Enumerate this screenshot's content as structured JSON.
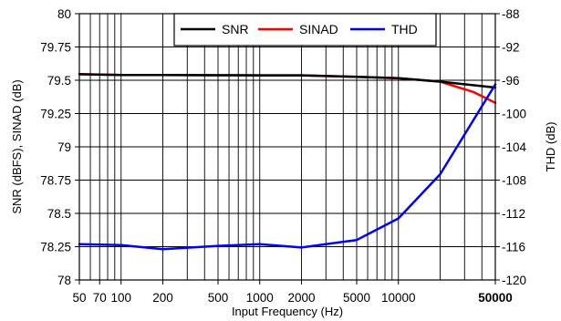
{
  "chart_data": {
    "type": "line",
    "xlabel": "Input Frequency (Hz)",
    "ylabel_left": "SNR (dBFS), SINAD (dB)",
    "ylabel_right": "THD (dB)",
    "x_scale": "log",
    "xlim": [
      50,
      50000
    ],
    "ylim_left": [
      78,
      80
    ],
    "ylim_right": [
      -120,
      -88
    ],
    "grid": true,
    "legend_position": "top-right",
    "x_tick_values": [
      50,
      70,
      100,
      200,
      500,
      1000,
      2000,
      5000,
      10000,
      50000
    ],
    "x_tick_labels": [
      "50",
      "70",
      "100",
      "200",
      "500",
      "1000",
      "2000",
      "5000",
      "10000",
      "50000"
    ],
    "y_left_tick_labels": [
      "80",
      "79.75",
      "79.5",
      "79.25",
      "79",
      "78.75",
      "78.5",
      "78.25",
      "78"
    ],
    "y_right_tick_labels": [
      "-88",
      "-92",
      "-96",
      "-100",
      "-104",
      "-108",
      "-112",
      "-116",
      "-120"
    ],
    "series": [
      {
        "name": "SNR",
        "axis": "left",
        "color": "#000000",
        "x": [
          50,
          100,
          200,
          500,
          1000,
          2000,
          5000,
          10000,
          20000,
          50000
        ],
        "y": [
          79.545,
          79.54,
          79.54,
          79.538,
          79.537,
          79.537,
          79.525,
          79.515,
          79.49,
          79.445
        ]
      },
      {
        "name": "SINAD",
        "axis": "left",
        "color": "#ff0000",
        "x": [
          50,
          100,
          200,
          500,
          1000,
          2000,
          5000,
          10000,
          20000,
          35000,
          50000
        ],
        "y": [
          79.545,
          79.54,
          79.54,
          79.538,
          79.537,
          79.537,
          79.525,
          79.515,
          79.49,
          79.41,
          79.33
        ]
      },
      {
        "name": "THD",
        "axis": "right",
        "color": "#0000ff",
        "x": [
          50,
          100,
          200,
          500,
          1000,
          2000,
          5000,
          10000,
          20000,
          50000
        ],
        "y": [
          -115.7,
          -115.8,
          -116.3,
          -115.9,
          -115.7,
          -116.1,
          -115.2,
          -112.6,
          -107.3,
          -96.5
        ]
      }
    ]
  }
}
